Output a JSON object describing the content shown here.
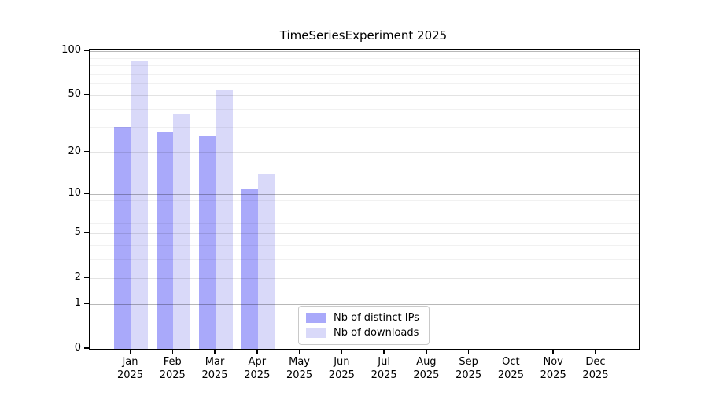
{
  "chart_data": {
    "type": "bar",
    "title": "TimeSeriesExperiment 2025",
    "categories": [
      "Jan",
      "Feb",
      "Mar",
      "Apr",
      "May",
      "Jun",
      "Jul",
      "Aug",
      "Sep",
      "Oct",
      "Nov",
      "Dec"
    ],
    "category_year": "2025",
    "series": [
      {
        "name": "Nb of distinct IPs",
        "color": "#a9a9fa",
        "values": [
          30,
          28,
          26,
          11,
          0,
          0,
          0,
          0,
          0,
          0,
          0,
          0
        ]
      },
      {
        "name": "Nb of downloads",
        "color": "#d9d9f9",
        "values": [
          85,
          37,
          55,
          14,
          0,
          0,
          0,
          0,
          0,
          0,
          0,
          0
        ]
      }
    ],
    "y_axis": {
      "scale": "log10(1+value)",
      "ticks": [
        0,
        1,
        2,
        5,
        10,
        20,
        50,
        100
      ],
      "minor_ticks": [
        3,
        4,
        6,
        7,
        8,
        9,
        30,
        40,
        60,
        70,
        80,
        90
      ],
      "ylim": [
        0,
        103
      ]
    },
    "x_axis": {
      "label": "",
      "tick_style": "month over year, two lines"
    },
    "legend_position": "lower center",
    "grid": "horizontal major+minor, drawn over bars",
    "colors": {
      "grid_decade": "rgba(0,0,0,0.28)",
      "grid_major": "rgba(0,0,0,0.11)",
      "grid_minor": "rgba(0,0,0,0.055)",
      "spine": "#000000",
      "background": "#ffffff"
    }
  }
}
